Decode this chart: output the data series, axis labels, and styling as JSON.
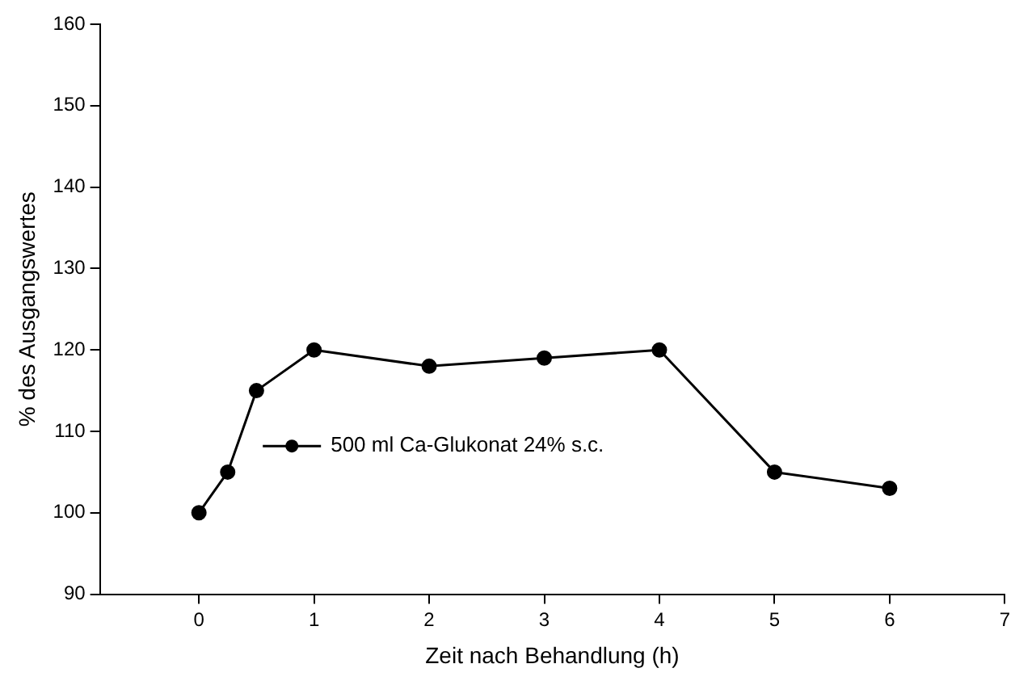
{
  "chart_data": {
    "type": "line",
    "xlabel": "Zeit nach Behandlung (h)",
    "ylabel": "% des Ausgangswertes",
    "series": [
      {
        "name": "500 ml Ca-Glukonat 24% s.c.",
        "color": "#000000",
        "x": [
          0,
          0.25,
          0.5,
          1,
          2,
          3,
          4,
          5,
          6
        ],
        "values": [
          100,
          105,
          115,
          120,
          118,
          119,
          120,
          105,
          103
        ]
      }
    ],
    "xlim": [
      -0.86,
      7
    ],
    "xticks": [
      0,
      1,
      2,
      3,
      4,
      5,
      6,
      7
    ],
    "ylim": [
      90,
      160
    ],
    "yticks": [
      90,
      100,
      110,
      120,
      130,
      140,
      150,
      160
    ],
    "grid": false,
    "legend": "center left",
    "marker": "circle",
    "line_style": "solid"
  }
}
